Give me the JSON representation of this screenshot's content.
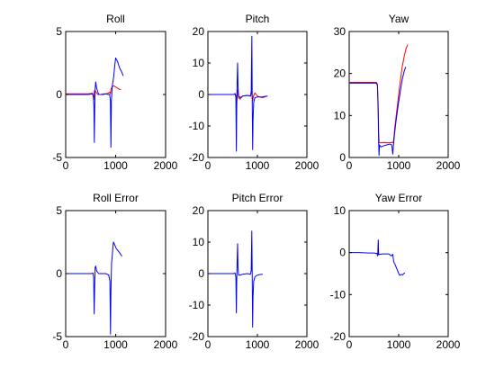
{
  "figure": {
    "background": "#ffffff"
  },
  "chart_data": [
    {
      "type": "line",
      "title": "Roll",
      "xlabel": "",
      "ylabel": "",
      "xlim": [
        0,
        2000
      ],
      "ylim": [
        -5,
        5
      ],
      "xticks": [
        0,
        1000,
        2000
      ],
      "yticks": [
        -5,
        0,
        5
      ],
      "grid": false,
      "series": [
        {
          "color": "#ff0000",
          "points": [
            [
              0,
              0.05
            ],
            [
              150,
              0.05
            ],
            [
              300,
              0.05
            ],
            [
              450,
              0.05
            ],
            [
              540,
              0.1
            ],
            [
              565,
              -0.4
            ],
            [
              575,
              0.3
            ],
            [
              590,
              0.3
            ],
            [
              620,
              0.1
            ],
            [
              650,
              0.0
            ],
            [
              700,
              0.0
            ],
            [
              750,
              0.05
            ],
            [
              800,
              0.05
            ],
            [
              850,
              0.1
            ],
            [
              880,
              0.2
            ],
            [
              895,
              0.05
            ],
            [
              905,
              0.4
            ],
            [
              915,
              0.5
            ],
            [
              930,
              0.6
            ],
            [
              960,
              0.7
            ],
            [
              1000,
              0.6
            ],
            [
              1040,
              0.5
            ],
            [
              1080,
              0.4
            ],
            [
              1100,
              0.4
            ]
          ]
        },
        {
          "color": "#0000ff",
          "points": [
            [
              0,
              0.0
            ],
            [
              150,
              0.0
            ],
            [
              300,
              0.0
            ],
            [
              450,
              0.0
            ],
            [
              540,
              0.05
            ],
            [
              555,
              -0.2
            ],
            [
              565,
              -1.0
            ],
            [
              573,
              -3.8
            ],
            [
              580,
              -1.5
            ],
            [
              586,
              0.2
            ],
            [
              600,
              1.0
            ],
            [
              620,
              0.5
            ],
            [
              660,
              0.0
            ],
            [
              700,
              0.0
            ],
            [
              750,
              0.0
            ],
            [
              800,
              0.05
            ],
            [
              850,
              0.0
            ],
            [
              880,
              0.0
            ],
            [
              895,
              -0.5
            ],
            [
              905,
              -4.2
            ],
            [
              915,
              -0.5
            ],
            [
              930,
              0.6
            ],
            [
              960,
              1.4
            ],
            [
              985,
              2.4
            ],
            [
              1000,
              2.9
            ],
            [
              1040,
              2.6
            ],
            [
              1080,
              2.1
            ],
            [
              1120,
              1.8
            ],
            [
              1150,
              1.5
            ]
          ]
        }
      ]
    },
    {
      "type": "line",
      "title": "Pitch",
      "xlabel": "",
      "ylabel": "",
      "xlim": [
        0,
        2000
      ],
      "ylim": [
        -20,
        20
      ],
      "xticks": [
        0,
        1000,
        2000
      ],
      "yticks": [
        -20,
        -10,
        0,
        10,
        20
      ],
      "grid": false,
      "series": [
        {
          "color": "#ff0000",
          "points": [
            [
              0,
              0.0
            ],
            [
              200,
              0.0
            ],
            [
              400,
              0.0
            ],
            [
              520,
              0.0
            ],
            [
              550,
              0.2
            ],
            [
              570,
              -0.5
            ],
            [
              580,
              -3.0
            ],
            [
              590,
              -1.0
            ],
            [
              600,
              1.5
            ],
            [
              620,
              -1.0
            ],
            [
              650,
              -1.5
            ],
            [
              700,
              -0.5
            ],
            [
              800,
              -0.3
            ],
            [
              860,
              -0.5
            ],
            [
              880,
              1.0
            ],
            [
              895,
              -1.0
            ],
            [
              905,
              -2.0
            ],
            [
              920,
              -0.5
            ],
            [
              950,
              0.5
            ],
            [
              1000,
              -0.5
            ],
            [
              1050,
              -0.8
            ],
            [
              1100,
              -1.0
            ],
            [
              1150,
              -0.8
            ],
            [
              1180,
              -0.5
            ]
          ]
        },
        {
          "color": "#0000ff",
          "points": [
            [
              0,
              0.0
            ],
            [
              200,
              0.0
            ],
            [
              400,
              0.0
            ],
            [
              520,
              0.0
            ],
            [
              550,
              0.3
            ],
            [
              565,
              -1.0
            ],
            [
              575,
              -18.0
            ],
            [
              582,
              -5.0
            ],
            [
              590,
              4.0
            ],
            [
              600,
              10.0
            ],
            [
              608,
              3.0
            ],
            [
              620,
              -0.5
            ],
            [
              650,
              -1.0
            ],
            [
              700,
              -0.5
            ],
            [
              800,
              -0.3
            ],
            [
              860,
              -0.5
            ],
            [
              875,
              1.0
            ],
            [
              888,
              18.5
            ],
            [
              896,
              -3.0
            ],
            [
              904,
              -17.5
            ],
            [
              912,
              -8.0
            ],
            [
              925,
              -2.5
            ],
            [
              950,
              -1.0
            ],
            [
              1000,
              -0.8
            ],
            [
              1050,
              -0.8
            ],
            [
              1100,
              -0.8
            ],
            [
              1150,
              -0.6
            ],
            [
              1200,
              -0.5
            ]
          ]
        }
      ]
    },
    {
      "type": "line",
      "title": "Yaw",
      "xlabel": "",
      "ylabel": "",
      "xlim": [
        0,
        2000
      ],
      "ylim": [
        0,
        30
      ],
      "xticks": [
        0,
        1000,
        2000
      ],
      "yticks": [
        0,
        10,
        20,
        30
      ],
      "grid": false,
      "series": [
        {
          "color": "#ff0000",
          "points": [
            [
              0,
              17.9
            ],
            [
              200,
              17.9
            ],
            [
              400,
              17.9
            ],
            [
              550,
              17.9
            ],
            [
              570,
              17.5
            ],
            [
              585,
              13.0
            ],
            [
              595,
              6.0
            ],
            [
              605,
              3.5
            ],
            [
              640,
              3.5
            ],
            [
              700,
              3.6
            ],
            [
              760,
              3.5
            ],
            [
              820,
              3.5
            ],
            [
              870,
              3.6
            ],
            [
              890,
              3.5
            ],
            [
              905,
              5.0
            ],
            [
              920,
              7.0
            ],
            [
              950,
              10.0
            ],
            [
              990,
              14.0
            ],
            [
              1030,
              18.0
            ],
            [
              1070,
              21.5
            ],
            [
              1110,
              24.0
            ],
            [
              1150,
              26.0
            ],
            [
              1180,
              26.8
            ]
          ]
        },
        {
          "color": "#0000ff",
          "points": [
            [
              0,
              17.7
            ],
            [
              200,
              17.7
            ],
            [
              400,
              17.7
            ],
            [
              550,
              17.7
            ],
            [
              570,
              17.2
            ],
            [
              585,
              11.0
            ],
            [
              595,
              3.5
            ],
            [
              603,
              0.5
            ],
            [
              612,
              3.0
            ],
            [
              640,
              2.5
            ],
            [
              700,
              2.8
            ],
            [
              760,
              3.0
            ],
            [
              820,
              3.2
            ],
            [
              860,
              3.0
            ],
            [
              880,
              0.8
            ],
            [
              895,
              3.0
            ],
            [
              915,
              5.5
            ],
            [
              950,
              9.0
            ],
            [
              990,
              12.5
            ],
            [
              1030,
              15.5
            ],
            [
              1070,
              18.5
            ],
            [
              1110,
              20.5
            ],
            [
              1140,
              21.5
            ]
          ]
        }
      ]
    },
    {
      "type": "line",
      "title": "Roll Error",
      "xlabel": "",
      "ylabel": "",
      "xlim": [
        0,
        2000
      ],
      "ylim": [
        -5,
        5
      ],
      "xticks": [
        0,
        1000,
        2000
      ],
      "yticks": [
        -5,
        0,
        5
      ],
      "grid": false,
      "series": [
        {
          "color": "#0000ff",
          "points": [
            [
              0,
              0.0
            ],
            [
              200,
              0.0
            ],
            [
              400,
              0.0
            ],
            [
              520,
              0.0
            ],
            [
              545,
              0.05
            ],
            [
              560,
              -0.3
            ],
            [
              570,
              -3.2
            ],
            [
              580,
              -1.0
            ],
            [
              590,
              0.5
            ],
            [
              600,
              0.6
            ],
            [
              620,
              0.2
            ],
            [
              660,
              0.0
            ],
            [
              720,
              0.0
            ],
            [
              800,
              0.0
            ],
            [
              860,
              -0.1
            ],
            [
              885,
              -0.6
            ],
            [
              897,
              -4.8
            ],
            [
              905,
              -1.5
            ],
            [
              918,
              0.8
            ],
            [
              935,
              1.6
            ],
            [
              955,
              2.5
            ],
            [
              980,
              2.3
            ],
            [
              1010,
              2.0
            ],
            [
              1050,
              1.8
            ],
            [
              1090,
              1.6
            ],
            [
              1120,
              1.4
            ]
          ]
        }
      ]
    },
    {
      "type": "line",
      "title": "Pitch Error",
      "xlabel": "",
      "ylabel": "",
      "xlim": [
        0,
        2000
      ],
      "ylim": [
        -20,
        20
      ],
      "xticks": [
        0,
        1000,
        2000
      ],
      "yticks": [
        -20,
        -10,
        0,
        10,
        20
      ],
      "grid": false,
      "series": [
        {
          "color": "#0000ff",
          "points": [
            [
              0,
              0.0
            ],
            [
              200,
              0.0
            ],
            [
              400,
              0.0
            ],
            [
              520,
              0.0
            ],
            [
              548,
              0.2
            ],
            [
              565,
              -1.0
            ],
            [
              575,
              -12.5
            ],
            [
              582,
              -3.0
            ],
            [
              590,
              4.0
            ],
            [
              600,
              9.5
            ],
            [
              608,
              2.0
            ],
            [
              620,
              -0.5
            ],
            [
              650,
              -0.5
            ],
            [
              700,
              -0.2
            ],
            [
              800,
              0.0
            ],
            [
              860,
              -0.2
            ],
            [
              875,
              1.0
            ],
            [
              887,
              13.5
            ],
            [
              895,
              0.0
            ],
            [
              903,
              -17.0
            ],
            [
              911,
              -7.5
            ],
            [
              925,
              -2.5
            ],
            [
              950,
              -1.0
            ],
            [
              1000,
              -0.5
            ],
            [
              1050,
              -0.3
            ],
            [
              1100,
              -0.2
            ]
          ]
        }
      ]
    },
    {
      "type": "line",
      "title": "Yaw Error",
      "xlabel": "",
      "ylabel": "",
      "xlim": [
        0,
        2000
      ],
      "ylim": [
        -20,
        10
      ],
      "xticks": [
        0,
        1000,
        2000
      ],
      "yticks": [
        -20,
        -10,
        0,
        10
      ],
      "grid": false,
      "series": [
        {
          "color": "#0000ff",
          "points": [
            [
              0,
              0.0
            ],
            [
              200,
              0.0
            ],
            [
              400,
              -0.1
            ],
            [
              500,
              -0.1
            ],
            [
              560,
              -0.2
            ],
            [
              575,
              -0.8
            ],
            [
              587,
              3.0
            ],
            [
              595,
              -0.5
            ],
            [
              620,
              -0.4
            ],
            [
              680,
              -0.3
            ],
            [
              740,
              -0.3
            ],
            [
              800,
              -0.3
            ],
            [
              850,
              -0.8
            ],
            [
              880,
              -0.4
            ],
            [
              900,
              -2.2
            ],
            [
              925,
              -2.8
            ],
            [
              950,
              -3.5
            ],
            [
              975,
              -4.2
            ],
            [
              1000,
              -5.0
            ],
            [
              1020,
              -5.4
            ],
            [
              1050,
              -5.2
            ],
            [
              1080,
              -5.3
            ],
            [
              1100,
              -5.0
            ],
            [
              1120,
              -4.9
            ]
          ]
        }
      ]
    }
  ]
}
